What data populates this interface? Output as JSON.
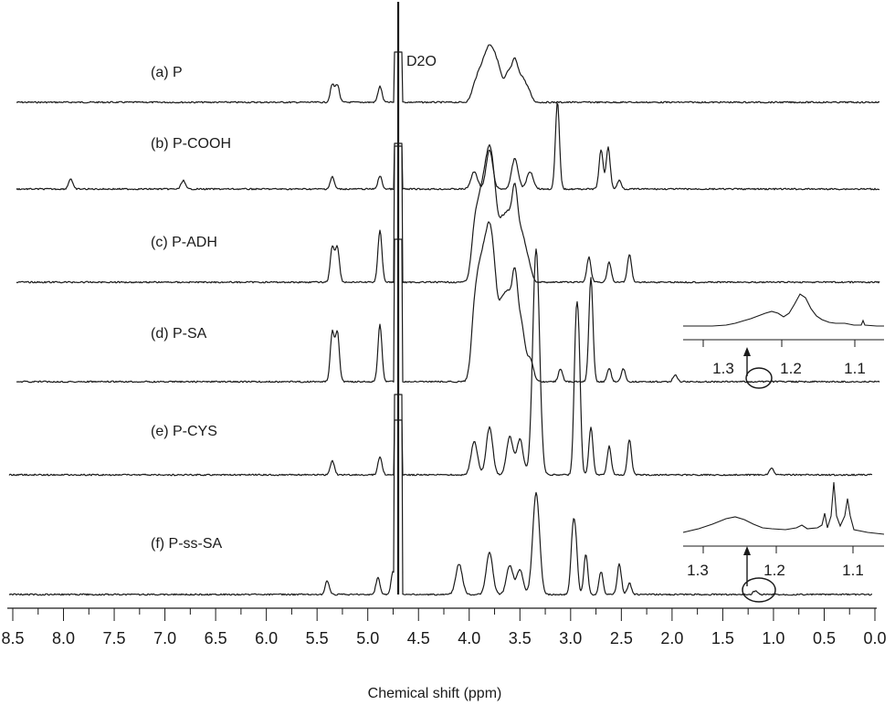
{
  "chart_data": {
    "type": "line",
    "xlabel": "Chemical shift (ppm)",
    "ylabel": "",
    "xlim": [
      8.5,
      0.0
    ],
    "x_reversed": true,
    "xticks": [
      "8.5",
      "8.0",
      "7.5",
      "7.0",
      "6.5",
      "6.0",
      "5.5",
      "5.0",
      "4.5",
      "4.0",
      "3.5",
      "3.0",
      "2.5",
      "2.0",
      "1.5",
      "1.0",
      "0.5",
      "0.0"
    ],
    "annotations": [
      {
        "text": "D2O",
        "x": 4.7
      }
    ],
    "series": [
      {
        "name": "(a) P",
        "baseline_order": 0,
        "peaks": [
          [
            5.35,
            0.33
          ],
          [
            5.3,
            0.33
          ],
          [
            4.88,
            0.3
          ],
          [
            3.95,
            0.25
          ],
          [
            3.9,
            0.4
          ],
          [
            3.85,
            0.55
          ],
          [
            3.8,
            0.75
          ],
          [
            3.75,
            0.6
          ],
          [
            3.7,
            0.45
          ],
          [
            3.62,
            0.5
          ],
          [
            3.55,
            0.75
          ],
          [
            3.48,
            0.4
          ],
          [
            3.42,
            0.22
          ]
        ]
      },
      {
        "name": "(b) P-COOH",
        "baseline_order": 1,
        "peaks": [
          [
            7.93,
            0.12
          ],
          [
            6.82,
            0.1
          ],
          [
            5.35,
            0.14
          ],
          [
            4.88,
            0.15
          ],
          [
            3.95,
            0.2
          ],
          [
            3.8,
            0.45
          ],
          [
            3.55,
            0.35
          ],
          [
            3.4,
            0.2
          ],
          [
            3.13,
            1.0
          ],
          [
            2.7,
            0.45
          ],
          [
            2.63,
            0.48
          ],
          [
            2.52,
            0.1
          ]
        ]
      },
      {
        "name": "(c) P-ADH",
        "baseline_order": 2,
        "peaks": [
          [
            5.35,
            0.35
          ],
          [
            5.3,
            0.35
          ],
          [
            4.88,
            0.52
          ],
          [
            3.95,
            0.45
          ],
          [
            3.9,
            0.55
          ],
          [
            3.85,
            0.7
          ],
          [
            3.8,
            0.95
          ],
          [
            3.75,
            0.7
          ],
          [
            3.68,
            0.5
          ],
          [
            3.62,
            0.55
          ],
          [
            3.55,
            0.9
          ],
          [
            3.48,
            0.4
          ],
          [
            3.42,
            0.2
          ],
          [
            2.82,
            0.25
          ],
          [
            2.62,
            0.2
          ],
          [
            2.42,
            0.28
          ]
        ]
      },
      {
        "name": "(d) P-SA",
        "baseline_order": 3,
        "peaks": [
          [
            5.35,
            0.45
          ],
          [
            5.3,
            0.45
          ],
          [
            4.88,
            0.52
          ],
          [
            3.95,
            0.55
          ],
          [
            3.9,
            0.7
          ],
          [
            3.85,
            0.8
          ],
          [
            3.8,
            1.0
          ],
          [
            3.75,
            0.75
          ],
          [
            3.68,
            0.6
          ],
          [
            3.62,
            0.65
          ],
          [
            3.55,
            0.95
          ],
          [
            3.48,
            0.45
          ],
          [
            3.4,
            0.2
          ],
          [
            3.1,
            0.12
          ],
          [
            2.8,
            0.95
          ],
          [
            2.62,
            0.12
          ],
          [
            2.48,
            0.12
          ],
          [
            1.97,
            0.06
          ]
        ]
      },
      {
        "name": "(e) P-CYS",
        "baseline_order": 4,
        "peaks": [
          [
            5.35,
            0.12
          ],
          [
            4.88,
            0.15
          ],
          [
            3.95,
            0.28
          ],
          [
            3.8,
            0.4
          ],
          [
            3.6,
            0.32
          ],
          [
            3.5,
            0.3
          ],
          [
            3.35,
            1.0
          ],
          [
            3.33,
            1.0
          ],
          [
            2.95,
            1.0
          ],
          [
            2.92,
            0.95
          ],
          [
            2.8,
            0.4
          ],
          [
            2.62,
            0.24
          ],
          [
            2.42,
            0.3
          ],
          [
            1.02,
            0.06
          ]
        ]
      },
      {
        "name": "(f) P-ss-SA",
        "baseline_order": 5,
        "peaks": [
          [
            5.4,
            0.18
          ],
          [
            4.9,
            0.22
          ],
          [
            4.75,
            0.3
          ],
          [
            4.1,
            0.4
          ],
          [
            3.8,
            0.55
          ],
          [
            3.6,
            0.38
          ],
          [
            3.5,
            0.32
          ],
          [
            3.35,
            0.7
          ],
          [
            3.33,
            0.7
          ],
          [
            2.98,
            0.7
          ],
          [
            2.95,
            0.62
          ],
          [
            2.85,
            0.52
          ],
          [
            2.7,
            0.3
          ],
          [
            2.52,
            0.4
          ],
          [
            2.42,
            0.15
          ],
          [
            1.18,
            0.05
          ]
        ]
      }
    ],
    "insets": [
      {
        "for_series": "(d) P-SA",
        "xticks": [
          "1.3",
          "1.2",
          "1.1"
        ]
      },
      {
        "for_series": "(f) P-ss-SA",
        "xticks": [
          "1.3",
          "1.2",
          "1.1"
        ]
      }
    ]
  }
}
